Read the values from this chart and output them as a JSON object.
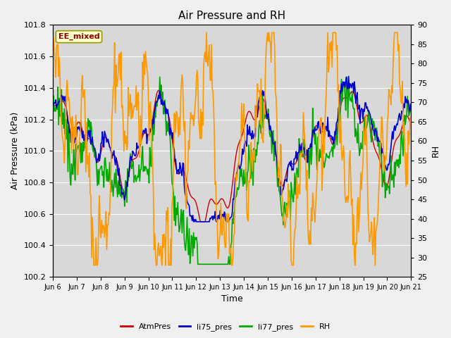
{
  "title": "Air Pressure and RH",
  "ylabel_left": "Air Pressure (kPa)",
  "ylabel_right": "RH",
  "xlabel": "Time",
  "annotation": "EE_mixed",
  "ylim_left": [
    100.2,
    101.8
  ],
  "ylim_right": [
    25,
    90
  ],
  "yticks_left": [
    100.2,
    100.4,
    100.6,
    100.8,
    101.0,
    101.2,
    101.4,
    101.6,
    101.8
  ],
  "yticks_right": [
    25,
    30,
    35,
    40,
    45,
    50,
    55,
    60,
    65,
    70,
    75,
    80,
    85,
    90
  ],
  "xtick_labels": [
    "Jun 6",
    "Jun 7",
    "Jun 8",
    "Jun 9",
    "Jun 10",
    "Jun 11",
    "Jun 12",
    "Jun 13",
    "Jun 14",
    "Jun 15",
    "Jun 16",
    "Jun 17",
    "Jun 18",
    "Jun 19",
    "Jun 20",
    "Jun 21"
  ],
  "colors": {
    "AtmPres": "#cc0000",
    "li75_pres": "#0000cc",
    "li77_pres": "#00aa00",
    "RH": "#ff9900"
  },
  "line_widths": {
    "AtmPres": 1.0,
    "li75_pres": 1.2,
    "li77_pres": 1.2,
    "RH": 1.2
  },
  "bg_color": "#e8e8e8",
  "plot_bg_color": "#d8d8d8",
  "grid_color": "#ffffff",
  "fig_bg_color": "#f0f0f0",
  "num_points": 500
}
